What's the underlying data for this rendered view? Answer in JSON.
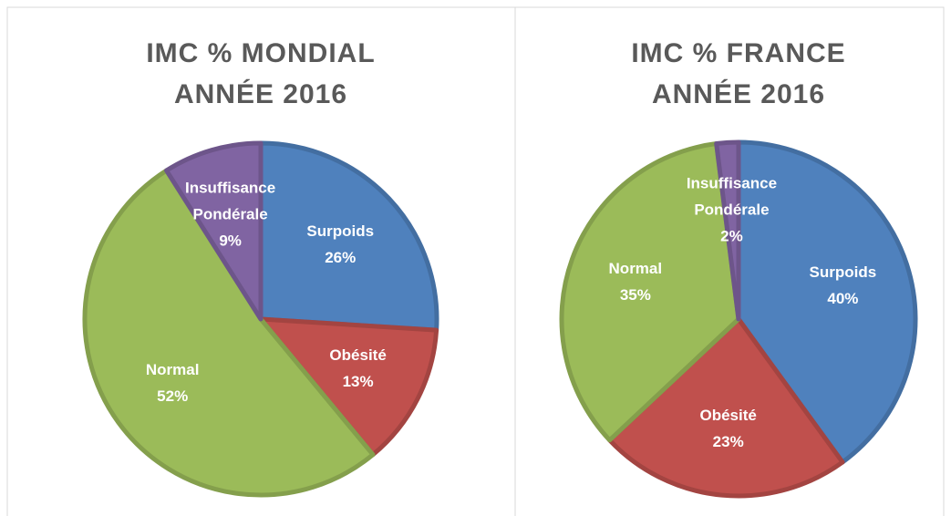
{
  "chart_data": [
    {
      "type": "pie",
      "title": [
        "IMC % MONDIAL",
        "ANNÉE 2016"
      ],
      "categories": [
        "Surpoids",
        "Obésité",
        "Normal",
        "Insuffisance Pondérale"
      ],
      "values": [
        26,
        13,
        52,
        9
      ],
      "value_labels": [
        "26%",
        "13%",
        "52%",
        "9%"
      ],
      "colors": [
        "#4f81bd",
        "#c0504d",
        "#9bbb59",
        "#8064a2"
      ]
    },
    {
      "type": "pie",
      "title": [
        "IMC % FRANCE",
        "ANNÉE 2016"
      ],
      "categories": [
        "Surpoids",
        "Obésité",
        "Normal",
        "Insuffisance Pondérale"
      ],
      "values": [
        40,
        23,
        35,
        2
      ],
      "value_labels": [
        "40%",
        "23%",
        "35%",
        "2%"
      ],
      "colors": [
        "#4f81bd",
        "#c0504d",
        "#9bbb59",
        "#8064a2"
      ]
    }
  ]
}
